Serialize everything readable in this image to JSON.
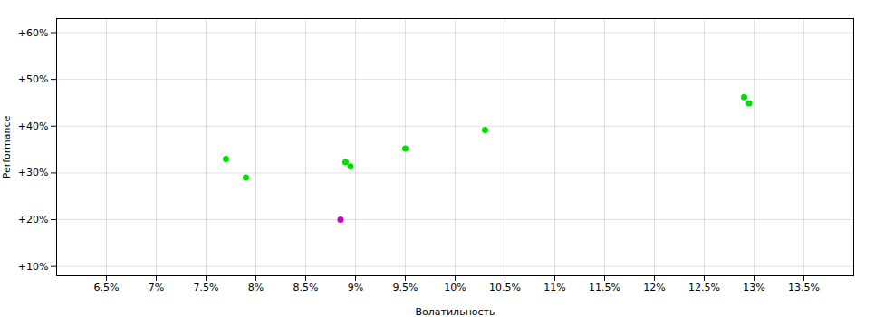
{
  "chart_data": {
    "type": "scatter",
    "xlabel": "Волатильность",
    "ylabel": "Performance",
    "xlim": [
      0.06,
      0.14
    ],
    "ylim": [
      0.08,
      0.63
    ],
    "xticks": [
      {
        "value": 0.065,
        "label": "6.5%"
      },
      {
        "value": 0.07,
        "label": "7%"
      },
      {
        "value": 0.075,
        "label": "7.5%"
      },
      {
        "value": 0.08,
        "label": "8%"
      },
      {
        "value": 0.085,
        "label": "8.5%"
      },
      {
        "value": 0.09,
        "label": "9%"
      },
      {
        "value": 0.095,
        "label": "9.5%"
      },
      {
        "value": 0.1,
        "label": "10%"
      },
      {
        "value": 0.105,
        "label": "10.5%"
      },
      {
        "value": 0.11,
        "label": "11%"
      },
      {
        "value": 0.115,
        "label": "11.5%"
      },
      {
        "value": 0.12,
        "label": "12%"
      },
      {
        "value": 0.125,
        "label": "12.5%"
      },
      {
        "value": 0.13,
        "label": "13%"
      },
      {
        "value": 0.135,
        "label": "13.5%"
      }
    ],
    "yticks": [
      {
        "value": 0.1,
        "label": "+10%"
      },
      {
        "value": 0.2,
        "label": "+20%"
      },
      {
        "value": 0.3,
        "label": "+30%"
      },
      {
        "value": 0.4,
        "label": "+40%"
      },
      {
        "value": 0.5,
        "label": "+50%"
      },
      {
        "value": 0.6,
        "label": "+60%"
      }
    ],
    "grid": true,
    "series": [
      {
        "color": "#00dd00",
        "x": [
          0.077,
          0.079,
          0.089,
          0.0895,
          0.095,
          0.103,
          0.129,
          0.1295
        ],
        "values": [
          0.33,
          0.29,
          0.323,
          0.314,
          0.352,
          0.392,
          0.462,
          0.449
        ]
      },
      {
        "color": "#cc00cc",
        "x": [
          0.0885
        ],
        "values": [
          0.2
        ]
      }
    ]
  }
}
